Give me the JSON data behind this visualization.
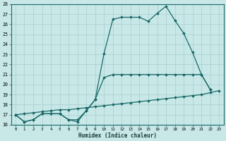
{
  "xlabel": "Humidex (Indice chaleur)",
  "bg_color": "#c8e8e8",
  "grid_color": "#a8cccc",
  "line_color": "#1a6868",
  "xlim": [
    -0.5,
    23.5
  ],
  "ylim": [
    16,
    28
  ],
  "xticks": [
    0,
    1,
    2,
    3,
    4,
    5,
    6,
    7,
    8,
    9,
    10,
    11,
    12,
    13,
    14,
    15,
    16,
    17,
    18,
    19,
    20,
    21,
    22,
    23
  ],
  "yticks": [
    16,
    17,
    18,
    19,
    20,
    21,
    22,
    23,
    24,
    25,
    26,
    27,
    28
  ],
  "line1_x": [
    0,
    1,
    2,
    3,
    4,
    5,
    6,
    7,
    8,
    9,
    10,
    11,
    12,
    13,
    14,
    15,
    16,
    17,
    18,
    19,
    20,
    21,
    22
  ],
  "line1_y": [
    17.0,
    16.3,
    16.5,
    17.1,
    17.1,
    17.1,
    16.5,
    16.3,
    17.4,
    18.5,
    23.1,
    26.5,
    26.7,
    26.7,
    26.7,
    26.3,
    27.1,
    27.8,
    26.4,
    25.1,
    23.2,
    21.0,
    19.5
  ],
  "line2_x": [
    0,
    1,
    2,
    3,
    4,
    5,
    6,
    7,
    8,
    9,
    10,
    11,
    12,
    13,
    14,
    15,
    16,
    17,
    18,
    19,
    20,
    21,
    22
  ],
  "line2_y": [
    17.0,
    16.3,
    16.5,
    17.1,
    17.1,
    17.1,
    16.5,
    16.5,
    17.4,
    18.5,
    20.7,
    21.0,
    21.0,
    21.0,
    21.0,
    21.0,
    21.0,
    21.0,
    21.0,
    21.0,
    21.0,
    21.0,
    19.5
  ],
  "line3_x": [
    0,
    1,
    2,
    3,
    4,
    5,
    6,
    7,
    8,
    9,
    10,
    11,
    12,
    13,
    14,
    15,
    16,
    17,
    18,
    19,
    20,
    21,
    22,
    23
  ],
  "line3_y": [
    17.0,
    17.1,
    17.2,
    17.3,
    17.4,
    17.5,
    17.5,
    17.6,
    17.7,
    17.8,
    17.9,
    18.0,
    18.1,
    18.2,
    18.3,
    18.4,
    18.5,
    18.6,
    18.7,
    18.8,
    18.9,
    19.0,
    19.2,
    19.4
  ]
}
